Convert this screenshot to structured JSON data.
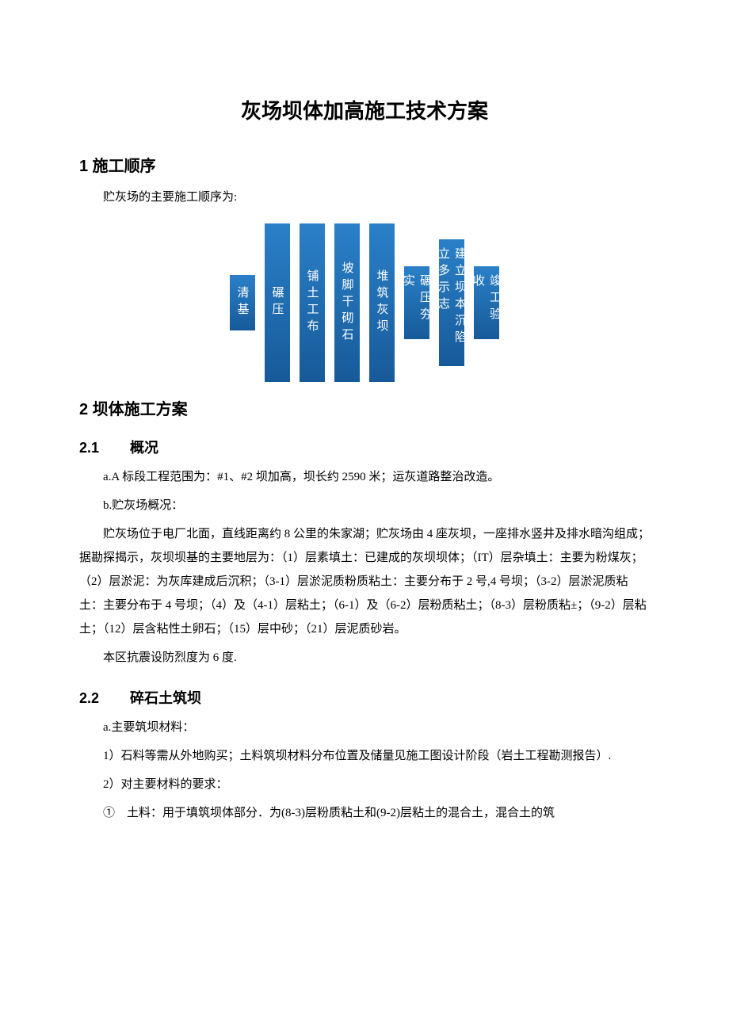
{
  "title": "灰场坝体加高施工技术方案",
  "sections": {
    "s1": {
      "heading": "1 施工顺序",
      "intro": "贮灰场的主要施工顺序为:"
    },
    "flowchart": {
      "boxes": [
        {
          "label": "清基",
          "size": "s1"
        },
        {
          "label": "碾压",
          "size": "s2"
        },
        {
          "label": "铺土工布",
          "size": "s2"
        },
        {
          "label": "坡脚干砌石",
          "size": "s2"
        },
        {
          "label": "堆筑灰坝",
          "size": "s2"
        },
        {
          "label": "碾压夯实",
          "size": "s3"
        },
        {
          "label": "建立坝本沉陷立多示志",
          "size": "s4"
        },
        {
          "label": "竣工验收",
          "size": "s5"
        }
      ],
      "box_bg": "#1f6fb4",
      "box_text_color": "#ffffff"
    },
    "s2": {
      "heading": "2 坝体施工方案"
    },
    "s2_1": {
      "num": "2.1",
      "title": "概况",
      "p_a": "a.A 标段工程范围为：#1、#2 坝加高，坝长约 2590 米；运灰道路整治改造。",
      "p_b": "b.贮灰场概况：",
      "p_body1": "贮灰场位于电厂北面，直线距离约 8 公里的朱家湖；贮灰场由 4 座灰坝，一座排水竖井及排水暗沟组成；据勘探揭示，灰坝坝基的主要地层为：（1）层素填土：已建成的灰坝坝体；（IT）层杂填土：主要为粉煤灰；（2）层淤泥：为灰库建成后沉积；（3-1）层淤泥质粉质粘土：主要分布于 2 号,4 号坝；（3-2）层淤泥质粘土：主要分布于 4 号坝；（4）及（4-1）层粘土；（6-1）及（6-2）层粉质粘土；（8-3）层粉质粘±；（9-2）层粘土；（12）层含粘性土卵石；（15）层中砂；（21）层泥质砂岩。",
      "p_body2": "本区抗震设防烈度为 6 度."
    },
    "s2_2": {
      "num": "2.2",
      "title": "碎石土筑坝",
      "p_a": "a.主要筑坝材料：",
      "p_1": "1）石料等需从外地购买；土料筑坝材料分布位置及储量见施工图设计阶段（岩土工程勘测报告）.",
      "p_2": "2）对主要材料的要求：",
      "p_item1": "①　土料：用于填筑坝体部分．为(8-3)层粉质粘土和(9-2)层粘土的混合土，混合土的筑"
    }
  }
}
